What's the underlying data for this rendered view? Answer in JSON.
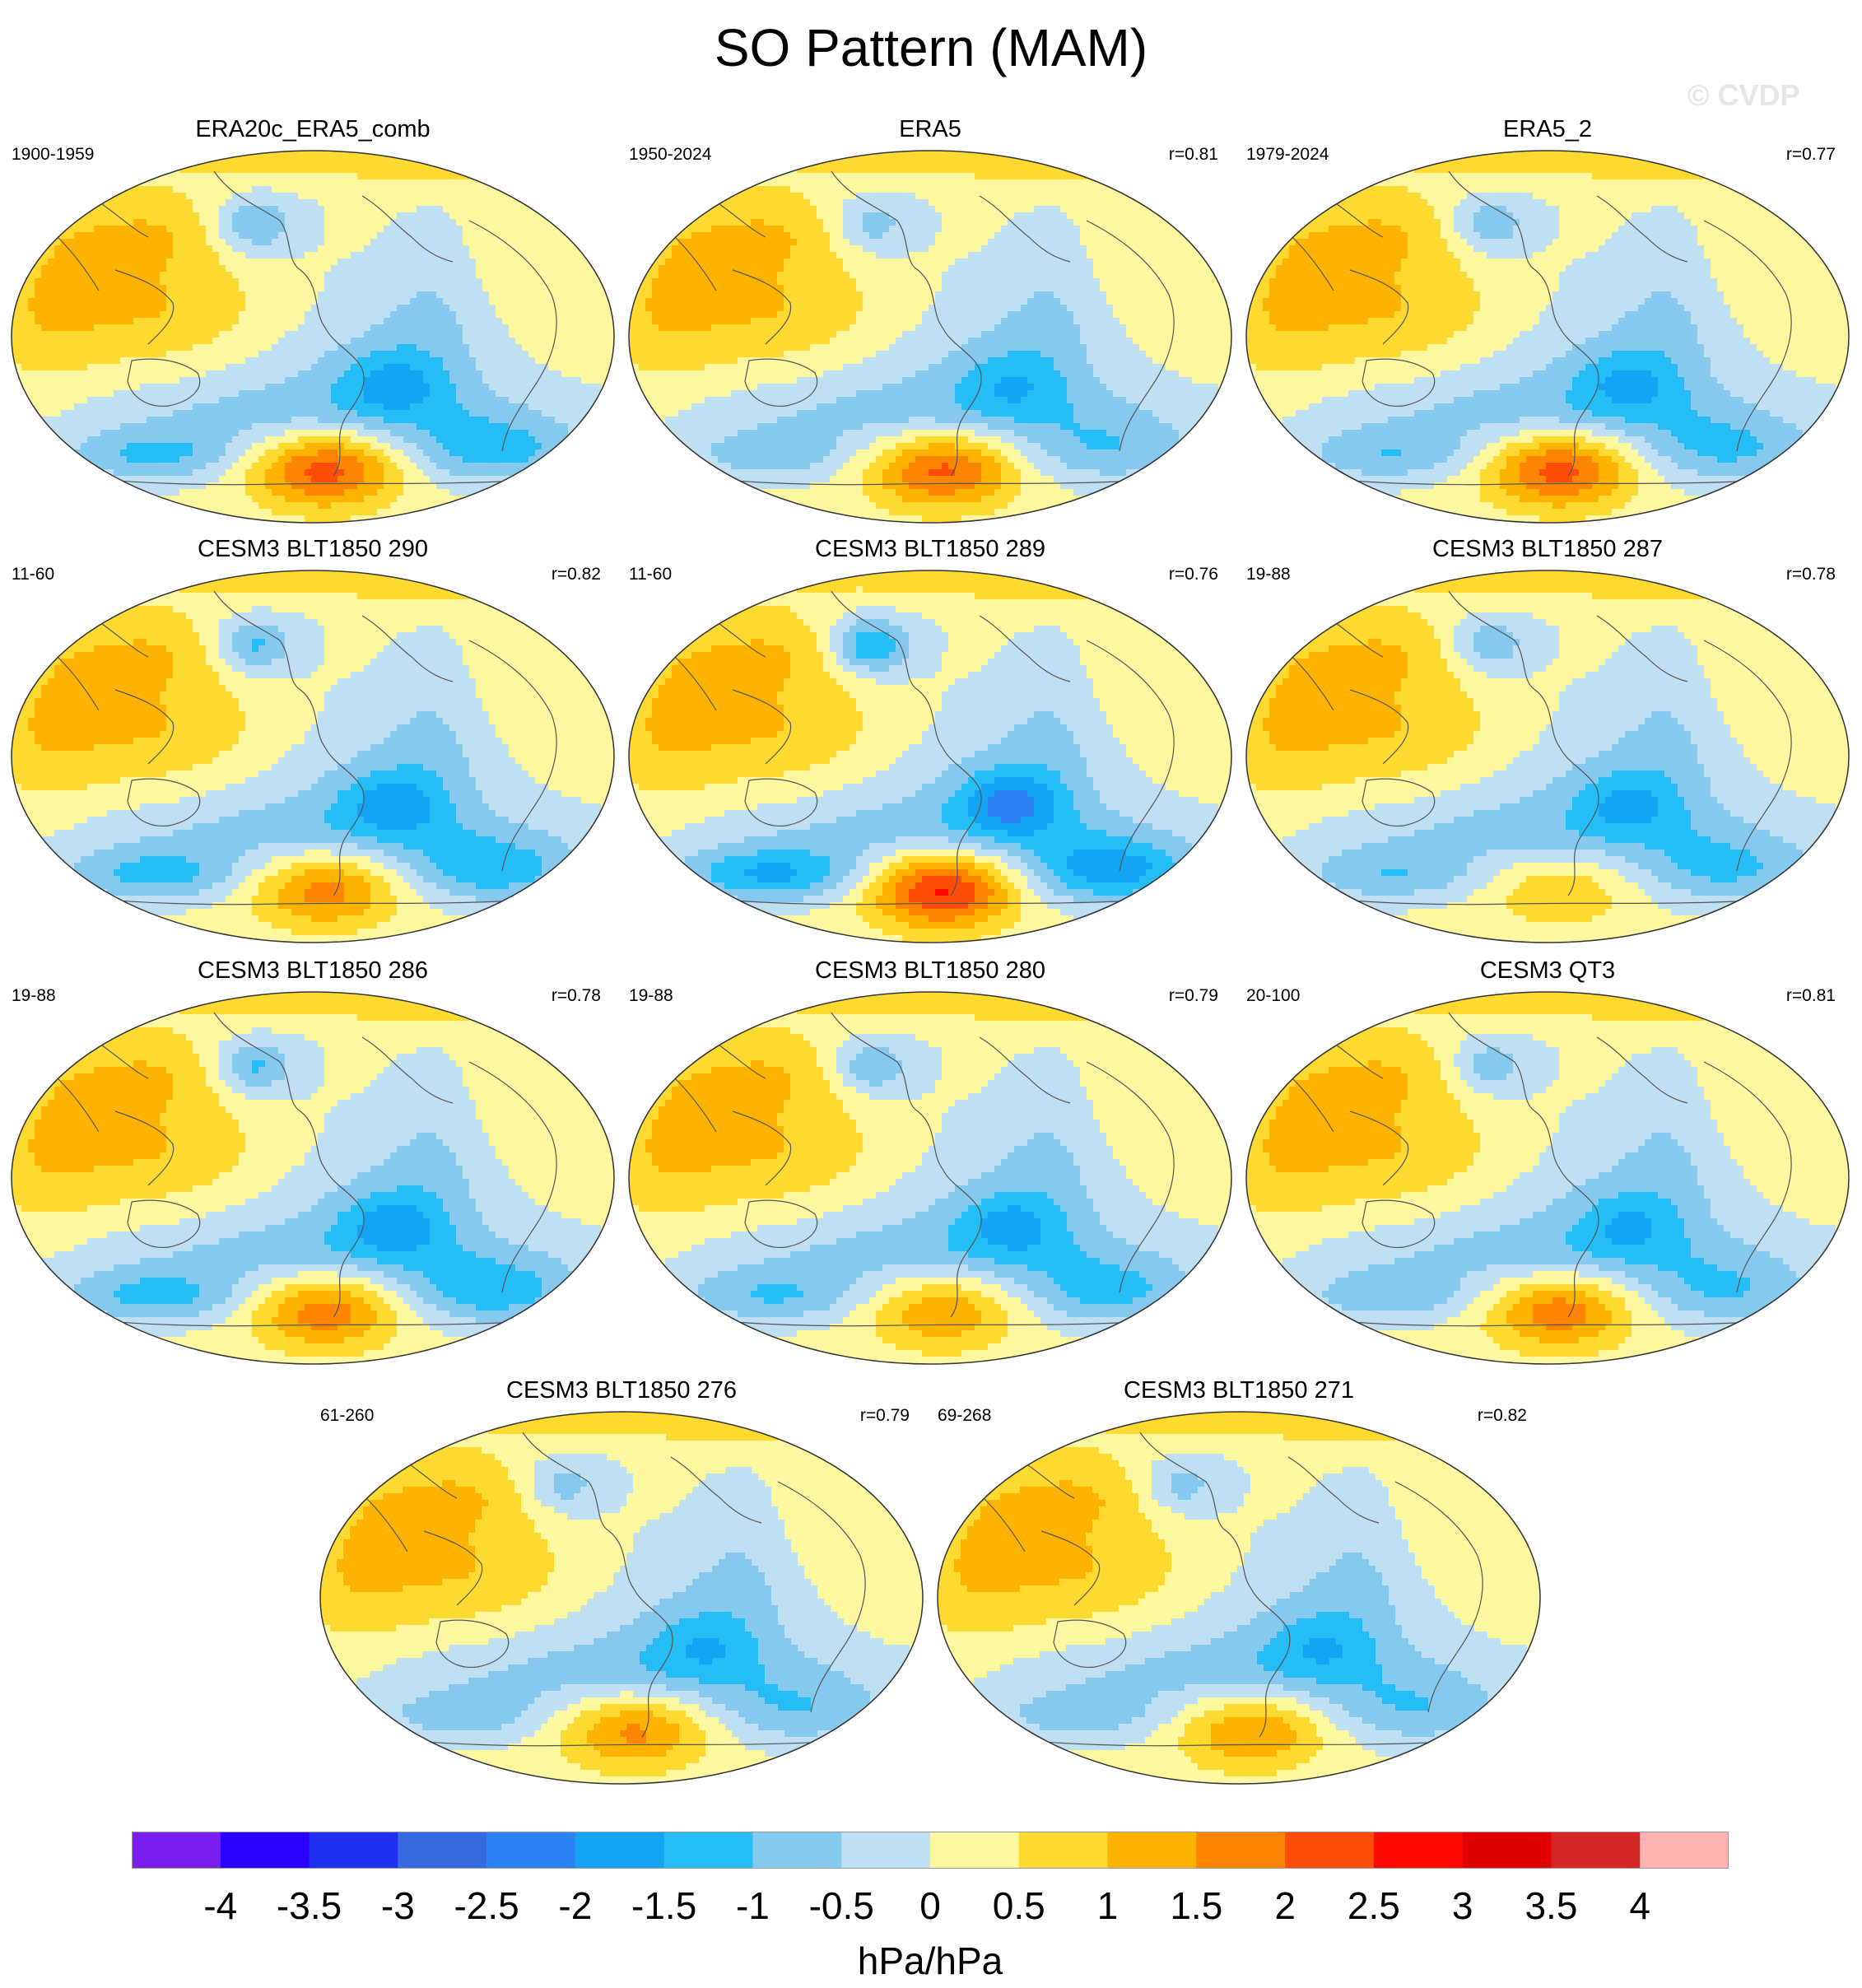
{
  "title": "SO Pattern (MAM)",
  "watermark": "© CVDP",
  "chart_data": {
    "type": "heatmap",
    "title": "SO Pattern (MAM)",
    "units": "hPa/hPa",
    "projection": "global map, Pacific-centred",
    "colorbar": {
      "levels": [
        "-4",
        "-3.5",
        "-3",
        "-2.5",
        "-2",
        "-1.5",
        "-1",
        "-0.5",
        "0",
        "0.5",
        "1",
        "1.5",
        "2",
        "2.5",
        "3",
        "3.5",
        "4"
      ],
      "colors": [
        "#7b1ef0",
        "#2a00ff",
        "#1f2ff0",
        "#3668e0",
        "#2c82f2",
        "#13a5f4",
        "#25bdf5",
        "#86c9ee",
        "#bfe0f2",
        "#fdf7a0",
        "#fed930",
        "#fdb300",
        "#fd8500",
        "#ff4d08",
        "#ff0a00",
        "#e00000",
        "#d42424",
        "#ffb3b3"
      ]
    },
    "panels": [
      {
        "title": "ERA20c_ERA5_comb",
        "years": "1900-1959",
        "r": "",
        "max": 2.2,
        "min": -1.5
      },
      {
        "title": "ERA5",
        "years": "1950-2024",
        "r": "r=0.81",
        "max": 2.1,
        "min": -1.1
      },
      {
        "title": "ERA5_2",
        "years": "1979-2024",
        "r": "r=0.77",
        "max": 2.2,
        "min": -1.3
      },
      {
        "title": "CESM3 BLT1850 290",
        "years": "11-60",
        "r": "r=0.82",
        "max": 1.7,
        "min": -1.6
      },
      {
        "title": "CESM3 BLT1850 289",
        "years": "11-60",
        "r": "r=0.76",
        "max": 2.6,
        "min": -2.1
      },
      {
        "title": "CESM3 BLT1850 287",
        "years": "19-88",
        "r": "r=0.78",
        "max": 0.9,
        "min": -1.3
      },
      {
        "title": "CESM3 BLT1850 286",
        "years": "19-88",
        "r": "r=0.78",
        "max": 1.8,
        "min": -1.6
      },
      {
        "title": "CESM3 BLT1850 280",
        "years": "19-88",
        "r": "r=0.79",
        "max": 1.4,
        "min": -1.4
      },
      {
        "title": "CESM3 QT3",
        "years": "20-100",
        "r": "r=0.81",
        "max": 1.8,
        "min": -1.2
      },
      {
        "title": "CESM3 BLT1850 276",
        "years": "61-260",
        "r": "r=0.79",
        "max": 1.6,
        "min": -1.1
      },
      {
        "title": "CESM3 BLT1850 271",
        "years": "69-268",
        "r": "r=0.82",
        "max": 1.5,
        "min": -1.1
      }
    ]
  }
}
